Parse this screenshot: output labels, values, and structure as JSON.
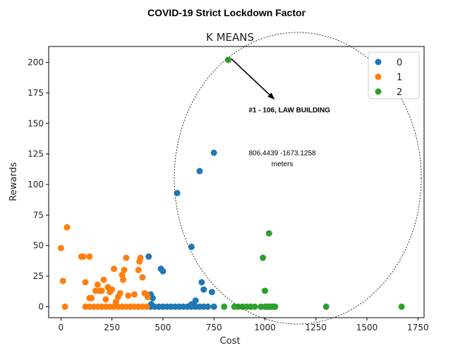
{
  "header": {
    "title": "COVID-19 Strict Lockdown Factor"
  },
  "chart_data": {
    "type": "scatter",
    "title": "K MEANS",
    "xlabel": "Cost",
    "ylabel": "Rewards",
    "xlim": [
      -60,
      1780
    ],
    "ylim": [
      -9,
      213
    ],
    "xticks": [
      0,
      250,
      500,
      750,
      1000,
      1250,
      1500,
      1750
    ],
    "yticks": [
      0,
      25,
      50,
      75,
      100,
      125,
      150,
      175,
      200
    ],
    "grid": false,
    "legend": "top-right",
    "series": [
      {
        "name": "0",
        "color": "#1f77b4",
        "points": [
          [
            430,
            41
          ],
          [
            490,
            31
          ],
          [
            500,
            29
          ],
          [
            440,
            10
          ],
          [
            450,
            7
          ],
          [
            443,
            2
          ],
          [
            440,
            0
          ],
          [
            460,
            0
          ],
          [
            480,
            0
          ],
          [
            500,
            0
          ],
          [
            520,
            0
          ],
          [
            540,
            0
          ],
          [
            560,
            0
          ],
          [
            580,
            0
          ],
          [
            600,
            0
          ],
          [
            620,
            0
          ],
          [
            640,
            0
          ],
          [
            660,
            0
          ],
          [
            680,
            0
          ],
          [
            700,
            0
          ],
          [
            720,
            0
          ],
          [
            750,
            0
          ],
          [
            640,
            2
          ],
          [
            660,
            5
          ],
          [
            690,
            20
          ],
          [
            700,
            14
          ],
          [
            740,
            12
          ],
          [
            640,
            49
          ],
          [
            570,
            93
          ],
          [
            680,
            111
          ],
          [
            750,
            126
          ]
        ]
      },
      {
        "name": "1",
        "color": "#ff7f0e",
        "points": [
          [
            0,
            48
          ],
          [
            10,
            21
          ],
          [
            20,
            0
          ],
          [
            30,
            65
          ],
          [
            100,
            41
          ],
          [
            110,
            41
          ],
          [
            140,
            41
          ],
          [
            120,
            20
          ],
          [
            140,
            7
          ],
          [
            150,
            7
          ],
          [
            170,
            13
          ],
          [
            180,
            18
          ],
          [
            190,
            13
          ],
          [
            200,
            13
          ],
          [
            210,
            22
          ],
          [
            220,
            6
          ],
          [
            230,
            16
          ],
          [
            240,
            12
          ],
          [
            250,
            14
          ],
          [
            260,
            31
          ],
          [
            270,
            4
          ],
          [
            280,
            8
          ],
          [
            290,
            11
          ],
          [
            300,
            26
          ],
          [
            305,
            22
          ],
          [
            310,
            30
          ],
          [
            320,
            40
          ],
          [
            330,
            9
          ],
          [
            360,
            10
          ],
          [
            380,
            30
          ],
          [
            385,
            37
          ],
          [
            390,
            40
          ],
          [
            400,
            24
          ],
          [
            410,
            11
          ],
          [
            420,
            10
          ],
          [
            425,
            8
          ],
          [
            120,
            0
          ],
          [
            140,
            0
          ],
          [
            160,
            0
          ],
          [
            180,
            0
          ],
          [
            200,
            0
          ],
          [
            220,
            0
          ],
          [
            240,
            0
          ],
          [
            260,
            0
          ],
          [
            280,
            0
          ],
          [
            300,
            0
          ],
          [
            320,
            0
          ],
          [
            340,
            0
          ],
          [
            360,
            0
          ],
          [
            380,
            0
          ],
          [
            400,
            0
          ],
          [
            420,
            0
          ]
        ]
      },
      {
        "name": "2",
        "color": "#2ca02c",
        "points": [
          [
            820,
            202
          ],
          [
            1020,
            60
          ],
          [
            990,
            40
          ],
          [
            1000,
            13
          ],
          [
            800,
            0
          ],
          [
            850,
            0
          ],
          [
            870,
            0
          ],
          [
            890,
            0
          ],
          [
            910,
            0
          ],
          [
            930,
            0
          ],
          [
            950,
            0
          ],
          [
            980,
            0
          ],
          [
            1000,
            0
          ],
          [
            1010,
            0
          ],
          [
            1020,
            0
          ],
          [
            1030,
            0
          ],
          [
            1040,
            0
          ],
          [
            1050,
            0
          ],
          [
            1300,
            0
          ],
          [
            1670,
            0
          ]
        ]
      }
    ],
    "annotations": [
      {
        "text": "#1 - 106, LAW BUILDING",
        "x": 1120,
        "y": 159
      },
      {
        "text": "806.4439 -1673.1258",
        "x": 1085,
        "y": 124
      },
      {
        "text": "meters",
        "x": 1085,
        "y": 115
      }
    ],
    "arrow": {
      "from": [
        835,
        203
      ],
      "to": [
        1045,
        170
      ]
    },
    "ellipse": {
      "cx": 1070,
      "cy": 120,
      "rx": 635,
      "ry": 167
    }
  }
}
